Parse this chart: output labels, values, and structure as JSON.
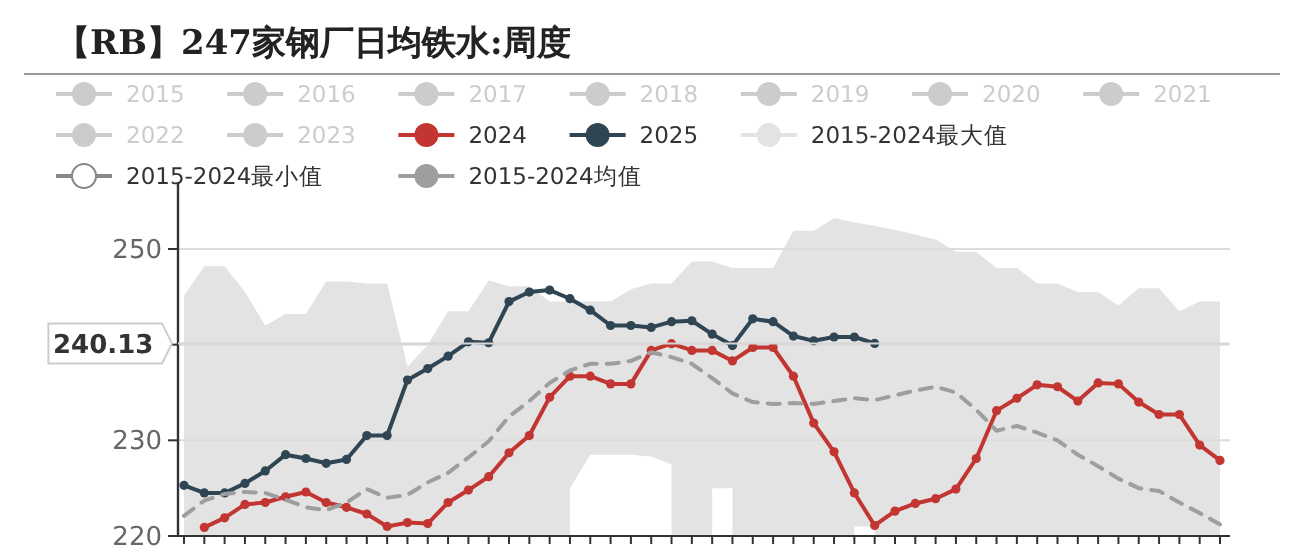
{
  "chart_data": {
    "type": "line",
    "title": "【RB】247家钢厂日均铁水:周度",
    "categories": [
      null,
      null,
      null,
      null,
      null,
      null,
      null,
      null,
      null,
      null,
      null,
      null,
      null,
      null,
      null,
      null,
      null,
      null,
      null,
      null,
      null,
      null,
      null,
      null,
      null,
      null,
      null,
      null,
      null,
      null,
      null,
      null,
      null,
      null,
      null,
      null,
      null,
      null,
      null,
      null,
      null,
      null,
      null,
      null,
      null,
      null,
      null,
      null,
      null,
      null,
      null,
      null
    ],
    "ylim": [
      220,
      257
    ],
    "yticks": [
      220,
      230,
      {
        "value": 240,
        "label": null
      },
      250
    ],
    "grid": "y",
    "legend": "top",
    "tick_labels": "y",
    "marker": "circle",
    "ref_lines": [
      {
        "axis": "y",
        "value": 240.13,
        "label": "240.13",
        "color": "#d6d6d6"
      }
    ],
    "series": [
      {
        "name": "2015",
        "color": "#cccccc",
        "values": [
          null,
          null,
          null,
          null,
          null,
          null,
          null,
          null,
          null,
          null,
          null,
          null,
          null,
          null,
          null,
          null,
          null,
          null,
          null,
          null,
          null,
          null,
          null,
          null,
          null,
          null,
          null,
          null,
          null,
          null,
          null,
          null,
          null,
          null,
          null,
          null,
          null,
          null,
          null,
          null,
          null,
          null,
          null,
          null,
          null,
          null,
          null,
          null,
          null,
          null,
          null,
          null
        ]
      },
      {
        "name": "2016",
        "color": "#cccccc",
        "values": [
          null,
          null,
          null,
          null,
          null,
          null,
          null,
          null,
          null,
          null,
          null,
          null,
          null,
          null,
          null,
          null,
          null,
          null,
          null,
          null,
          null,
          null,
          null,
          null,
          null,
          null,
          null,
          null,
          null,
          null,
          null,
          null,
          null,
          null,
          null,
          null,
          null,
          null,
          null,
          null,
          null,
          null,
          null,
          null,
          null,
          null,
          null,
          null,
          null,
          null,
          null,
          null
        ]
      },
      {
        "name": "2017",
        "color": "#cccccc",
        "values": [
          null,
          null,
          null,
          null,
          null,
          null,
          null,
          null,
          null,
          null,
          null,
          null,
          null,
          null,
          null,
          null,
          null,
          null,
          null,
          null,
          null,
          null,
          null,
          null,
          null,
          null,
          null,
          null,
          null,
          null,
          null,
          null,
          null,
          null,
          null,
          null,
          null,
          null,
          null,
          null,
          null,
          null,
          null,
          null,
          null,
          null,
          null,
          null,
          null,
          null,
          null,
          null
        ]
      },
      {
        "name": "2018",
        "color": "#cccccc",
        "values": [
          null,
          null,
          null,
          null,
          null,
          null,
          null,
          null,
          null,
          null,
          null,
          null,
          null,
          null,
          null,
          null,
          null,
          null,
          null,
          null,
          null,
          null,
          null,
          null,
          null,
          null,
          null,
          null,
          null,
          null,
          null,
          null,
          null,
          null,
          null,
          null,
          null,
          null,
          null,
          null,
          null,
          null,
          null,
          null,
          null,
          null,
          null,
          null,
          null,
          null,
          null,
          null
        ]
      },
      {
        "name": "2019",
        "color": "#cccccc",
        "values": [
          null,
          null,
          null,
          null,
          null,
          null,
          null,
          null,
          null,
          null,
          null,
          null,
          null,
          null,
          null,
          null,
          null,
          null,
          null,
          null,
          null,
          null,
          null,
          null,
          null,
          null,
          null,
          null,
          null,
          null,
          null,
          null,
          null,
          null,
          null,
          null,
          null,
          null,
          null,
          null,
          null,
          null,
          null,
          null,
          null,
          null,
          null,
          null,
          null,
          null,
          null,
          null
        ]
      },
      {
        "name": "2020",
        "color": "#cccccc",
        "values": [
          null,
          null,
          null,
          null,
          null,
          null,
          null,
          null,
          null,
          null,
          null,
          null,
          null,
          null,
          null,
          null,
          null,
          null,
          null,
          null,
          null,
          null,
          null,
          null,
          null,
          null,
          null,
          null,
          null,
          null,
          null,
          null,
          null,
          null,
          null,
          null,
          null,
          null,
          null,
          null,
          null,
          null,
          null,
          null,
          null,
          null,
          null,
          null,
          null,
          null,
          null,
          null
        ]
      },
      {
        "name": "2021",
        "color": "#cccccc",
        "values": [
          null,
          null,
          null,
          null,
          null,
          null,
          null,
          null,
          null,
          null,
          null,
          null,
          null,
          null,
          null,
          null,
          null,
          null,
          null,
          null,
          null,
          null,
          null,
          null,
          null,
          null,
          null,
          null,
          null,
          null,
          null,
          null,
          null,
          null,
          null,
          null,
          null,
          null,
          null,
          null,
          null,
          null,
          null,
          null,
          null,
          null,
          null,
          null,
          null,
          null,
          null,
          null
        ]
      },
      {
        "name": "2022",
        "color": "#cccccc",
        "values": [
          null,
          null,
          null,
          null,
          null,
          null,
          null,
          null,
          null,
          null,
          null,
          null,
          null,
          null,
          null,
          null,
          null,
          null,
          null,
          null,
          null,
          null,
          null,
          null,
          null,
          null,
          null,
          null,
          null,
          null,
          null,
          null,
          null,
          null,
          null,
          null,
          null,
          null,
          null,
          null,
          null,
          null,
          null,
          null,
          null,
          null,
          null,
          null,
          null,
          null,
          null,
          null
        ]
      },
      {
        "name": "2023",
        "color": "#cccccc",
        "values": [
          null,
          null,
          null,
          null,
          null,
          null,
          null,
          null,
          null,
          null,
          null,
          null,
          null,
          null,
          null,
          null,
          null,
          null,
          null,
          null,
          null,
          null,
          null,
          null,
          null,
          null,
          null,
          null,
          null,
          null,
          null,
          null,
          null,
          null,
          null,
          null,
          null,
          null,
          null,
          null,
          null,
          null,
          null,
          null,
          null,
          null,
          null,
          null,
          null,
          null,
          null,
          null
        ]
      },
      {
        "name": "2024",
        "color": "#c23531",
        "values": [
          null,
          220.9,
          221.9,
          223.3,
          223.5,
          224.1,
          224.6,
          223.5,
          223.0,
          222.3,
          221.0,
          221.4,
          221.3,
          223.5,
          224.8,
          226.2,
          228.7,
          230.5,
          234.5,
          236.7,
          236.7,
          235.9,
          235.9,
          239.4,
          240.1,
          239.4,
          239.4,
          238.3,
          239.7,
          239.7,
          236.7,
          231.8,
          228.8,
          224.5,
          221.1,
          222.6,
          223.4,
          223.9,
          224.9,
          228.1,
          233.1,
          234.4,
          235.8,
          235.6,
          234.1,
          236.0,
          235.9,
          234.0,
          232.7,
          232.7,
          229.5,
          227.9
        ]
      },
      {
        "name": "2025",
        "color": "#2f4554",
        "values": [
          225.3,
          224.5,
          224.5,
          225.5,
          226.8,
          228.5,
          228.1,
          227.6,
          228.0,
          230.5,
          230.5,
          236.3,
          237.5,
          238.8,
          240.3,
          240.2,
          244.5,
          245.5,
          245.7,
          244.8,
          243.6,
          242.0,
          242.0,
          241.8,
          242.4,
          242.5,
          241.1,
          239.9,
          242.7,
          242.4,
          240.9,
          240.4,
          240.8,
          240.8,
          240.13,
          null,
          null,
          null,
          null,
          null,
          null,
          null,
          null,
          null,
          null,
          null,
          null,
          null,
          null,
          null,
          null,
          null
        ]
      },
      {
        "name": "2015-2024最大值",
        "type": "area",
        "color": "#e3e3e3",
        "marker": "none",
        "values": [
          245.1,
          248.2,
          248.2,
          245.5,
          242.0,
          243.2,
          243.2,
          246.6,
          246.6,
          246.4,
          246.4,
          237.7,
          240.0,
          243.5,
          243.5,
          246.7,
          246.1,
          246.1,
          244.5,
          244.5,
          244.5,
          244.5,
          245.8,
          246.4,
          246.4,
          248.7,
          248.7,
          248.0,
          248.0,
          248.0,
          251.9,
          251.9,
          253.2,
          252.8,
          252.4,
          252.0,
          251.5,
          251.0,
          249.7,
          249.7,
          248.0,
          248.0,
          246.4,
          246.4,
          245.5,
          245.5,
          244.1,
          245.9,
          245.9,
          243.5,
          244.5,
          244.5
        ]
      },
      {
        "name": "2015-2024最小值",
        "type": "area",
        "color": "#ffffff",
        "marker": "none",
        "values": [
          null,
          null,
          null,
          null,
          null,
          null,
          null,
          null,
          null,
          null,
          null,
          null,
          null,
          null,
          null,
          null,
          null,
          null,
          null,
          225.0,
          228.5,
          228.5,
          228.5,
          228.3,
          227.5,
          null,
          225.0,
          225.0,
          null,
          null,
          null,
          null,
          null,
          221.0,
          221.0,
          null,
          null,
          null,
          null,
          null,
          null,
          null,
          null,
          null,
          null,
          null,
          null,
          null,
          null,
          null,
          null,
          null
        ]
      },
      {
        "name": "2015-2024均值",
        "color": "#9e9e9e",
        "marker": "none",
        "line_style": "dashed",
        "values": [
          222.1,
          223.7,
          224.4,
          224.6,
          224.5,
          223.8,
          223.0,
          222.7,
          223.5,
          224.9,
          224.0,
          224.3,
          225.6,
          226.6,
          228.2,
          229.9,
          232.5,
          234.1,
          236.0,
          237.3,
          238.0,
          238.0,
          238.3,
          239.2,
          238.7,
          238.0,
          236.5,
          234.9,
          234.0,
          233.8,
          233.9,
          233.8,
          234.1,
          234.4,
          234.2,
          234.7,
          235.2,
          235.6,
          235.0,
          233.2,
          231.0,
          231.5,
          230.8,
          230.0,
          228.5,
          227.3,
          226.0,
          225.0,
          224.7,
          223.5,
          222.4,
          221.2
        ]
      }
    ]
  }
}
